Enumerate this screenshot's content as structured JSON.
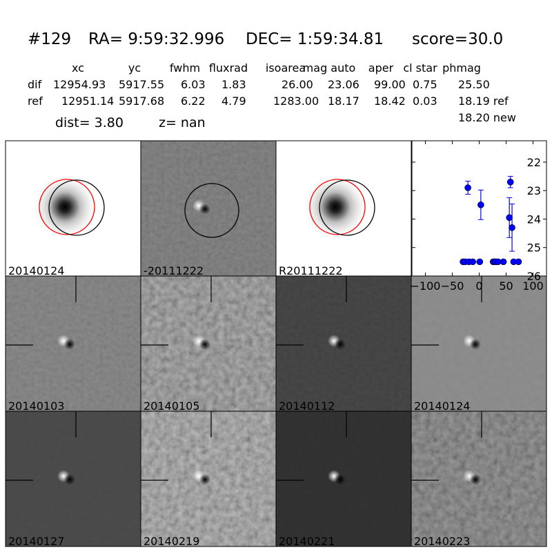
{
  "header": {
    "id": "#129",
    "ra": "RA= 9:59:32.996",
    "dec": "DEC= 1:59:34.81",
    "score": "score=30.0"
  },
  "table": {
    "columns": [
      "xc",
      "yc",
      "fwhm",
      "fluxrad",
      "isoarea",
      "mag auto",
      "aper",
      "cl star",
      "phmag"
    ],
    "rows": [
      {
        "label": "dif",
        "values": [
          "12954.93",
          "5917.55",
          "6.03",
          "1.83",
          "26.00",
          "23.06",
          "99.00",
          "0.75",
          "25.50"
        ]
      },
      {
        "label": "ref",
        "values": [
          "12951.14",
          "5917.68",
          "6.22",
          "4.79",
          "1283.00",
          "18.17",
          "18.42",
          "0.03",
          "18.19 ref"
        ]
      }
    ],
    "extra": "18.20 new",
    "dist": "dist=  3.80",
    "z": "z=   nan"
  },
  "panels": [
    {
      "label": "20140124",
      "kind": "new",
      "label_color": "#000000"
    },
    {
      "label": "-20111222",
      "kind": "diff",
      "label_color": "#000000"
    },
    {
      "label": "R20111222",
      "kind": "ref",
      "label_color": "#000000"
    },
    {
      "label": "20140103",
      "kind": "epoch",
      "label_color": "#000000"
    },
    {
      "label": "20140105",
      "kind": "epoch",
      "label_color": "#000000"
    },
    {
      "label": "20140112",
      "kind": "epoch",
      "label_color": "#000000"
    },
    {
      "label": "20140124",
      "kind": "epoch",
      "label_color": "#ff0000"
    },
    {
      "label": "20140127",
      "kind": "epoch",
      "label_color": "#000000"
    },
    {
      "label": "20140219",
      "kind": "epoch",
      "label_color": "#000000"
    },
    {
      "label": "20140221",
      "kind": "epoch",
      "label_color": "#000000"
    },
    {
      "label": "20140223",
      "kind": "epoch",
      "label_color": "#000000"
    }
  ],
  "chart_data": {
    "type": "scatter",
    "xlim": [
      -125,
      125
    ],
    "ylim": [
      26,
      21.25
    ],
    "y_inverted": true,
    "xticks": [
      -100,
      -50,
      0,
      50,
      100
    ],
    "yticks": [
      22,
      23,
      24,
      25,
      26
    ],
    "marker_color": "#0000ff",
    "points": [
      {
        "x": -21,
        "y": 22.9,
        "err": 0.23
      },
      {
        "x": 3,
        "y": 23.5,
        "err": 0.52
      },
      {
        "x": 58,
        "y": 22.7,
        "err": 0.2
      },
      {
        "x": 56,
        "y": 23.95,
        "err": 0.7
      },
      {
        "x": 61,
        "y": 24.3,
        "err": 0.83
      },
      {
        "x": -30,
        "y": 25.5,
        "err": 0.04
      },
      {
        "x": -26,
        "y": 25.5,
        "err": 0.04
      },
      {
        "x": -19,
        "y": 25.5,
        "err": 0.04
      },
      {
        "x": -12,
        "y": 25.5,
        "err": 0.04
      },
      {
        "x": 1,
        "y": 25.5,
        "err": 0.04
      },
      {
        "x": 26,
        "y": 25.5,
        "err": 0.04
      },
      {
        "x": 28,
        "y": 25.5,
        "err": 0.04
      },
      {
        "x": 31,
        "y": 25.5,
        "err": 0.04
      },
      {
        "x": 35,
        "y": 25.5,
        "err": 0.04
      },
      {
        "x": 45,
        "y": 25.5,
        "err": 0.04
      },
      {
        "x": 64,
        "y": 25.5,
        "err": 0.04
      },
      {
        "x": 73,
        "y": 25.5,
        "err": 0.04
      }
    ]
  }
}
